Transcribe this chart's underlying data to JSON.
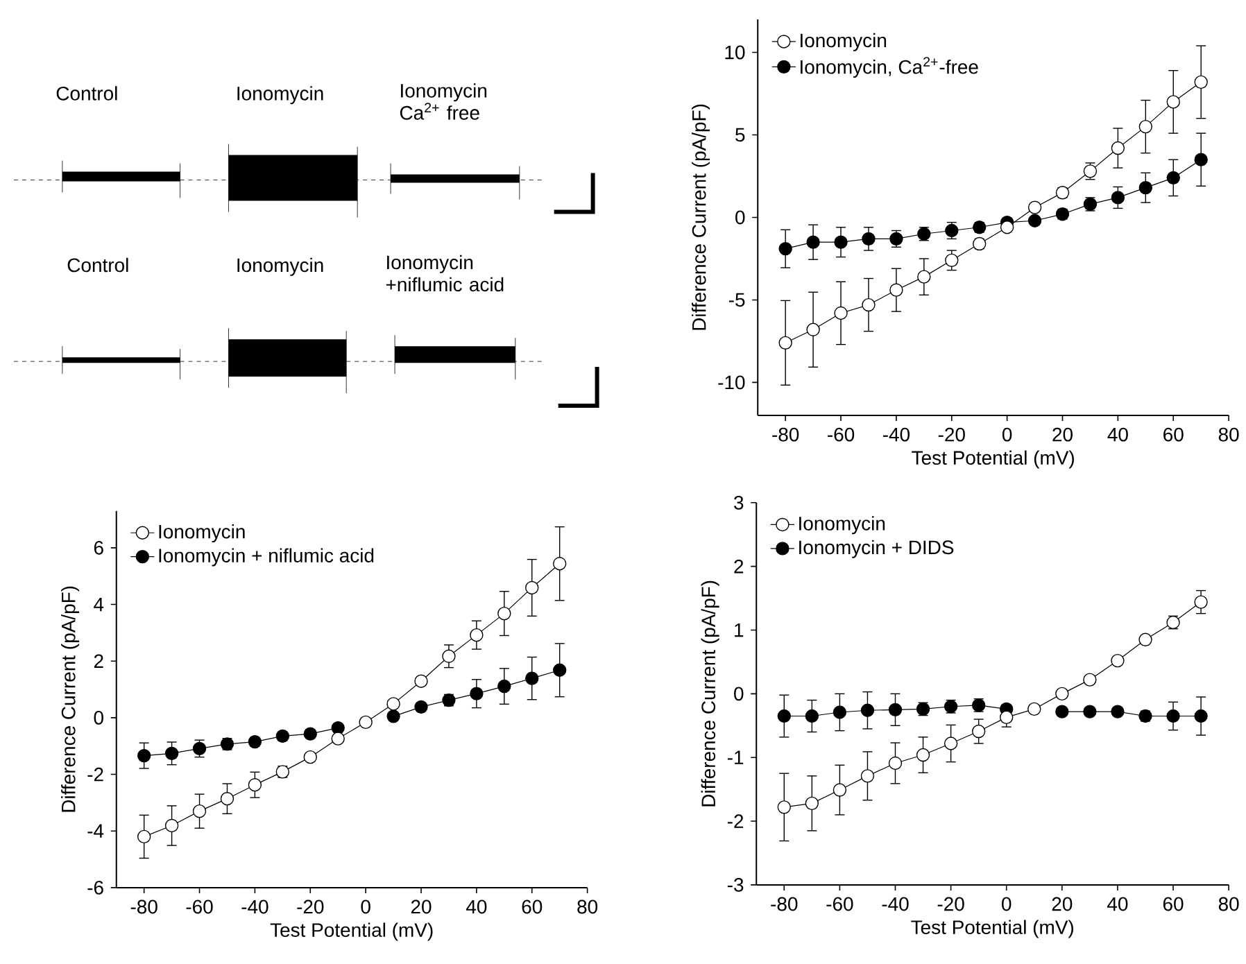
{
  "chart_data": [
    {
      "type": "other",
      "annotations": [
        "Control",
        "Ionomycin",
        "Ionomycin Ca$^{2+}$ free",
        "Control",
        "Ionomycin",
        "Ionomycin +niflumic acid"
      ]
    },
    {
      "type": "line",
      "xlabel": "Test Potential (mV)",
      "ylabel": "Difference Current (pA/pF)",
      "x": [
        -80,
        -70,
        -60,
        -50,
        -40,
        -30,
        -20,
        -10,
        0,
        10,
        20,
        30,
        40,
        50,
        60,
        70
      ],
      "xlim": [
        -90,
        80
      ],
      "xticks": [
        -80,
        -60,
        -40,
        -20,
        0,
        20,
        40,
        60,
        80
      ],
      "ylim": [
        -12,
        12
      ],
      "yticks": [
        -10,
        -5,
        0,
        5,
        10
      ],
      "legend": "top left",
      "marker": "circle",
      "line_style": "solid",
      "series": [
        {
          "name": "Ionomycin",
          "color": "#ffffff",
          "values": [
            -7.6,
            -6.8,
            -5.8,
            -5.3,
            -4.4,
            -3.6,
            -2.6,
            -1.6,
            -0.6,
            0.6,
            1.5,
            2.8,
            4.2,
            5.5,
            7.0,
            8.2
          ],
          "errors": [
            2.56,
            2.27,
            1.9,
            1.6,
            1.3,
            1.1,
            0.6,
            0.3,
            0.2,
            0.2,
            0.3,
            0.5,
            1.2,
            1.6,
            1.9,
            2.2
          ]
        },
        {
          "name": "Ionomycin, Ca$^{2+}$-free",
          "color": "#000000",
          "values": [
            -1.9,
            -1.5,
            -1.5,
            -1.3,
            -1.3,
            -1.0,
            -0.8,
            -0.6,
            -0.3,
            -0.2,
            0.2,
            0.8,
            1.2,
            1.8,
            2.4,
            3.5
          ],
          "errors": [
            1.15,
            1.05,
            0.9,
            0.7,
            0.5,
            0.4,
            0.5,
            0.3,
            null,
            0.2,
            0.3,
            0.4,
            0.65,
            0.9,
            1.1,
            1.6
          ]
        }
      ]
    },
    {
      "type": "line",
      "xlabel": "Test Potential (mV)",
      "ylabel": "Difference Current (pA/pF)",
      "x": [
        -80,
        -70,
        -60,
        -50,
        -40,
        -30,
        -20,
        -10,
        0,
        10,
        20,
        30,
        40,
        50,
        60,
        70
      ],
      "xlim": [
        -90,
        80
      ],
      "xticks": [
        -80,
        -60,
        -40,
        -20,
        0,
        20,
        40,
        60,
        80
      ],
      "ylim": [
        -6,
        7.3
      ],
      "yticks": [
        -6,
        -4,
        -2,
        0,
        2,
        4,
        6
      ],
      "legend": "top left",
      "marker": "circle",
      "line_style": "solid",
      "series": [
        {
          "name": "Ionomycin",
          "color": "#ffffff",
          "values": [
            -4.2,
            -3.81,
            -3.3,
            -2.86,
            -2.37,
            -1.91,
            -1.39,
            -0.74,
            -0.16,
            0.49,
            1.29,
            2.17,
            2.92,
            3.68,
            4.59,
            5.44
          ],
          "errors": [
            0.76,
            0.7,
            0.6,
            0.53,
            0.45,
            0.2,
            0.1,
            0.1,
            0.1,
            0.1,
            0.15,
            0.4,
            0.5,
            0.78,
            1.0,
            1.3
          ]
        },
        {
          "name": "Ionomycin + niflumic acid",
          "color": "#000000",
          "values": [
            -1.34,
            -1.26,
            -1.09,
            -0.93,
            -0.85,
            -0.65,
            -0.57,
            -0.36,
            null,
            0.05,
            0.38,
            0.62,
            0.85,
            1.11,
            1.39,
            1.68
          ],
          "errors": [
            0.45,
            0.4,
            0.3,
            0.2,
            0.15,
            0.15,
            0.15,
            0.1,
            null,
            0.1,
            0.1,
            0.2,
            0.5,
            0.63,
            0.75,
            0.94
          ]
        }
      ]
    },
    {
      "type": "line",
      "xlabel": "Test Potential (mV)",
      "ylabel": "Difference Current (pA/pF)",
      "x": [
        -80,
        -70,
        -60,
        -50,
        -40,
        -30,
        -20,
        -10,
        0,
        10,
        20,
        30,
        40,
        50,
        60,
        70
      ],
      "xlim": [
        -90,
        80
      ],
      "xticks": [
        -80,
        -60,
        -40,
        -20,
        0,
        20,
        40,
        60,
        80
      ],
      "ylim": [
        -3,
        3
      ],
      "yticks": [
        -3,
        -2,
        -1,
        0,
        1,
        2,
        3
      ],
      "legend": "top left",
      "marker": "circle",
      "line_style": "solid",
      "series": [
        {
          "name": "Ionomycin",
          "color": "#ffffff",
          "values": [
            -1.78,
            -1.72,
            -1.51,
            -1.29,
            -1.09,
            -0.96,
            -0.78,
            -0.59,
            -0.37,
            -0.24,
            0,
            0.22,
            0.52,
            0.85,
            1.12,
            1.44
          ],
          "errors": [
            0.53,
            0.43,
            0.39,
            0.38,
            0.32,
            0.28,
            0.29,
            0.19,
            0.15,
            0.05,
            0.05,
            0.05,
            0.05,
            0.05,
            0.1,
            0.18
          ]
        },
        {
          "name": "Ionomycin + DIDS",
          "color": "#000000",
          "values": [
            -0.35,
            -0.35,
            -0.29,
            -0.26,
            -0.25,
            -0.24,
            -0.2,
            -0.18,
            -0.24,
            null,
            -0.28,
            -0.28,
            -0.28,
            -0.35,
            -0.35,
            -0.35
          ],
          "errors": [
            0.33,
            0.25,
            0.29,
            0.29,
            0.25,
            0.1,
            0.1,
            0.1,
            null,
            null,
            0.05,
            0.05,
            0.05,
            0.08,
            0.22,
            0.3
          ]
        }
      ]
    }
  ]
}
